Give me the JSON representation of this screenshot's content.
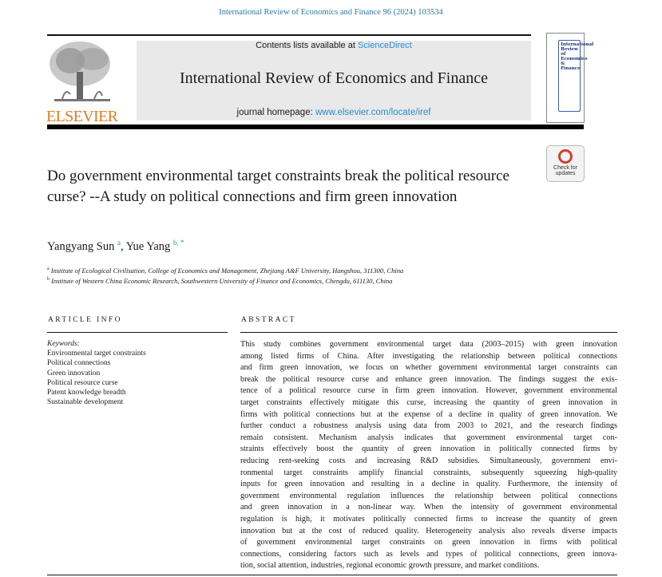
{
  "header": {
    "citation": "International Review of Economics and Finance 96 (2024) 103534",
    "contents_prefix": "Contents lists available at ",
    "contents_link": "ScienceDirect",
    "journal_title": "International Review of Economics and Finance",
    "homepage_prefix": "journal homepage: ",
    "homepage_link": "www.elsevier.com/locate/iref",
    "publisher_logo": "ELSEVIER",
    "cover_title": "International Review of Economics & Finance",
    "check_updates": "Check for updates"
  },
  "article": {
    "title": "Do government environmental target constraints break the political resource curse? --A study on political connections and firm green innovation",
    "authors": [
      {
        "name": "Yangyang Sun",
        "sup": "a"
      },
      {
        "name": "Yue Yang",
        "sup": "b, *"
      }
    ],
    "affiliations": [
      {
        "mark": "a",
        "text": "Institute of Ecological Civilisation, College of Economics and Management, Zhejiang A&F University, Hangshou, 311300, China"
      },
      {
        "mark": "b",
        "text": "Institute of Western China Economic Research, Southwestern University of Finance and Economics, Chengdu, 611130, China"
      }
    ]
  },
  "article_info": {
    "heading": "ARTICLE INFO",
    "keywords_label": "Keywords:",
    "keywords": [
      "Environmental target constraints",
      "Political connections",
      "Green innovation",
      "Political resource curse",
      "Patent knowledge breadth",
      "Sustainable development"
    ]
  },
  "abstract": {
    "heading": "ABSTRACT",
    "lines": [
      "This study combines government environmental target data (2003–2015) with green innovation",
      "among listed firms of China. After investigating the relationship between political connections",
      "and firm green innovation, we focus on whether government environmental target constraints can",
      "break the political resource curse and enhance green innovation. The findings suggest the exis-",
      "tence of a political resource curse in firm green innovation. However, government environmental",
      "target constraints effectively mitigate this curse, increasing the quantity of green innovation in",
      "firms with political connections but at the expense of a decline in quality of green innovation. We",
      "further conduct a robustness analysis using data from 2003 to 2021, and the research findings",
      "remain consistent. Mechanism analysis indicates that government environmental target con-",
      "straints effectively boost the quantity of green innovation in politically connected firms by",
      "reducing rent-seeking costs and increasing R&D subsidies. Simultaneously, government envi-",
      "ronmental target constraints amplify financial constraints, subsequently squeezing high-quality",
      "inputs for green innovation and resulting in a decline in quality. Furthermore, the intensity of",
      "government environmental regulation influences the relationship between political connections",
      "and green innovation in a non-linear way. When the intensity of government environmental",
      "regulation is high, it motivates politically connected firms to increase the quantity of green",
      "innovation but at the cost of reduced quality. Heterogeneity analysis also reveals diverse impacts",
      "of government environmental target constraints on green innovation in firms with political",
      "connections, considering factors such as levels and types of political connections, green innova-",
      "tion, social attention, industries, regional economic growth pressure, and market conditions."
    ]
  },
  "colors": {
    "link": "#2a8ad0",
    "publisher": "#e07b20",
    "banner": "#e9e9e9"
  }
}
